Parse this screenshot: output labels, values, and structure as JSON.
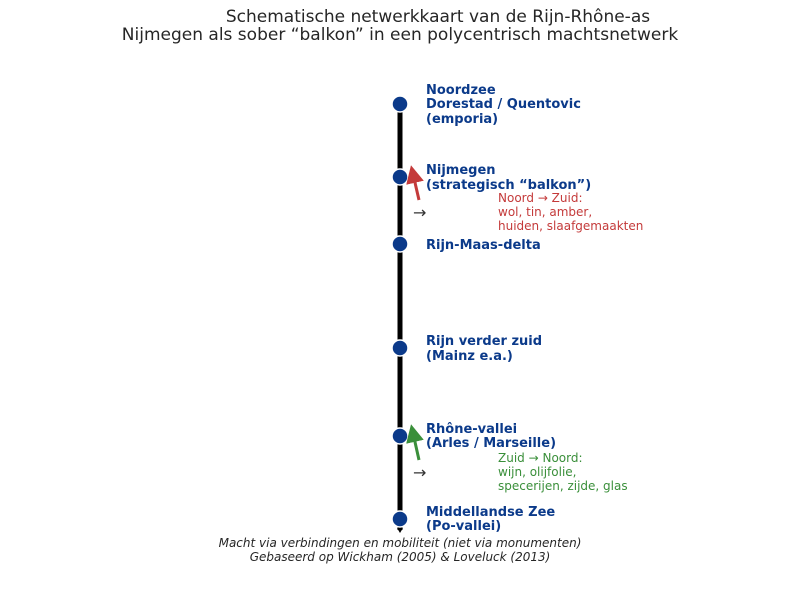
{
  "title": {
    "line1": "Schematische netwerkkaart van de Rijn-Rhône-as",
    "line2": "Nijmegen als sober “balkon” in een polycentrisch machtsnetwerk"
  },
  "colors": {
    "node": "#0b3a8a",
    "axis": "#000000",
    "north_south": "#c43a3a",
    "south_north": "#3a8f3a"
  },
  "nodes": [
    {
      "lines": [
        "Noordzee",
        "Dorestad / Quentovic",
        "(emporia)"
      ]
    },
    {
      "lines": [
        "Nijmegen",
        "(strategisch “balkon”)"
      ]
    },
    {
      "lines": [
        "Rijn-Maas-delta"
      ]
    },
    {
      "lines": [
        "Rijn verder zuid",
        "(Mainz e.a.)"
      ]
    },
    {
      "lines": [
        "Rhône-vallei",
        "(Arles / Marseille)"
      ]
    },
    {
      "lines": [
        "Middellandse Zee",
        "(Po-vallei)"
      ]
    }
  ],
  "flows": [
    {
      "direction_glyph": "→",
      "lines": [
        "Noord → Zuid:",
        "wol, tin, amber,",
        "huiden, slaafgemaakten"
      ]
    },
    {
      "direction_glyph": "→",
      "lines": [
        "Zuid → Noord:",
        "wijn, olijfolie,",
        "specerijen, zijde, glas"
      ]
    }
  ],
  "footer": {
    "line1": "Macht via verbindingen en mobiliteit (niet via monumenten)",
    "line2": "Gebaseerd op Wickham (2005) & Loveluck (2013)"
  }
}
